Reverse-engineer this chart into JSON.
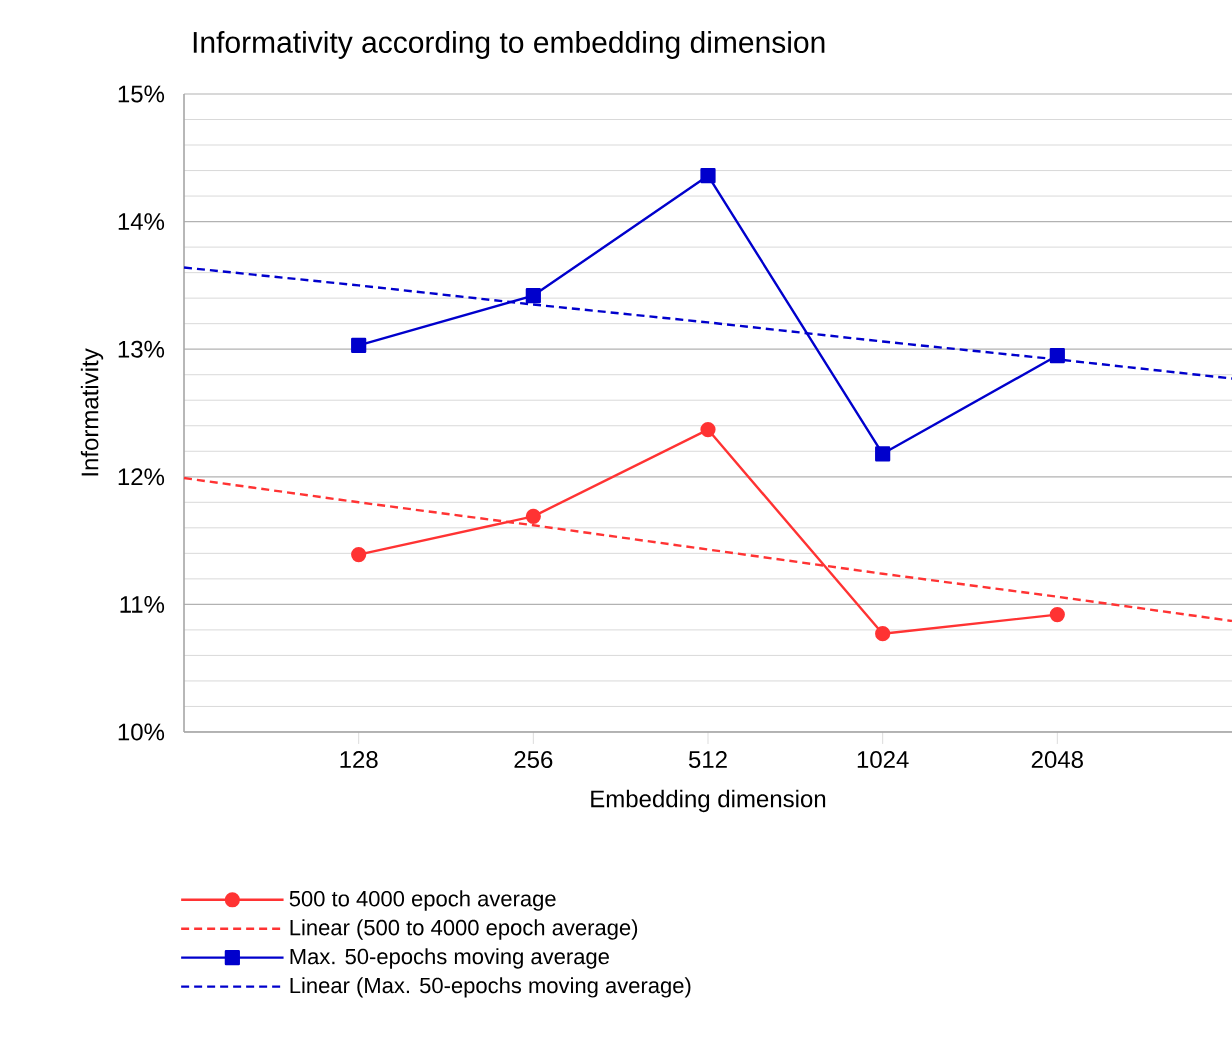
{
  "chart_data": {
    "type": "line",
    "title": "Informativity according to embedding dimension",
    "xlabel": "Embedding dimension",
    "ylabel": "Informativity",
    "categories": [
      null,
      "128",
      "256",
      "512",
      "1024",
      "2048",
      null
    ],
    "ylim": [
      10,
      15
    ],
    "yticks": [
      {
        "value": 10,
        "label": "10%"
      },
      {
        "value": 11,
        "label": "11%"
      },
      {
        "value": 12,
        "label": "12%"
      },
      {
        "value": 13,
        "label": "13%"
      },
      {
        "value": 14,
        "label": "14%"
      },
      {
        "value": 15,
        "label": "15%"
      }
    ],
    "grid": "y",
    "legend": "bottom",
    "series": [
      {
        "name": "500 to 4000 epoch average",
        "color": "#ff3333",
        "marker": "circle",
        "line_style": "solid",
        "values": [
          null,
          11.39,
          11.69,
          12.37,
          10.77,
          10.92,
          null
        ]
      },
      {
        "name": "Linear (500 to 4000 epoch average)",
        "color": "#ff3333",
        "marker": "none",
        "line_style": "dashed",
        "values": [
          11.99,
          11.8,
          11.62,
          11.43,
          11.24,
          11.06,
          10.87
        ]
      },
      {
        "name": "Max. 50-epochs moving average",
        "color": "#0000cc",
        "marker": "square",
        "line_style": "solid",
        "values": [
          null,
          13.03,
          13.42,
          14.36,
          12.18,
          12.95,
          null
        ]
      },
      {
        "name": "Linear (Max. 50-epochs moving average)",
        "color": "#0000cc",
        "marker": "none",
        "line_style": "dashed",
        "values": [
          13.64,
          13.5,
          13.35,
          13.21,
          13.06,
          12.92,
          12.77
        ]
      }
    ]
  }
}
